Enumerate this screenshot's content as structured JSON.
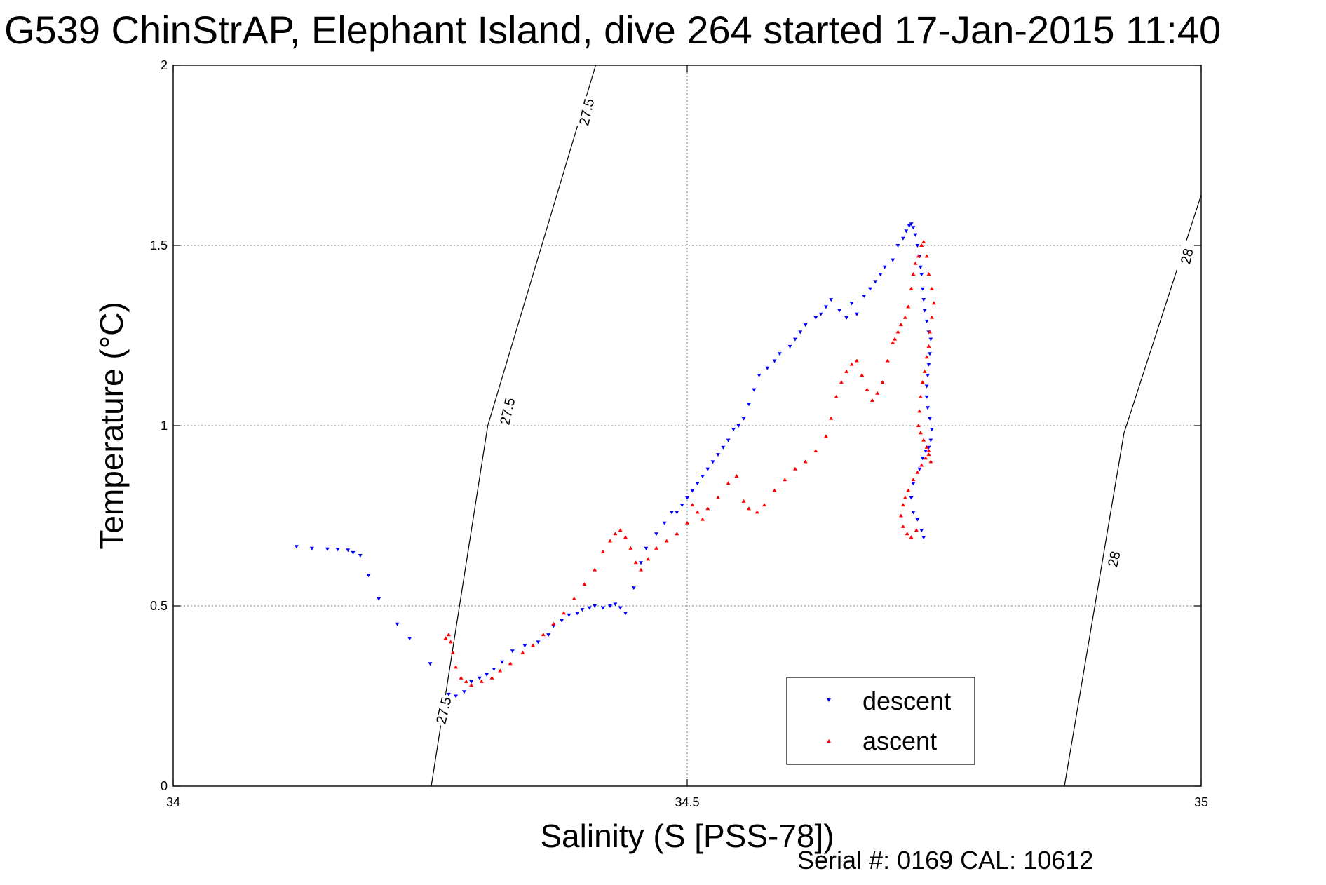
{
  "chart_data": {
    "type": "scatter",
    "title": "G539 ChinStrAP, Elephant Island, dive 264 started 17-Jan-2015 11:40",
    "xlabel": "Salinity (S [PSS-78])",
    "ylabel": "Temperature (°C)",
    "xlim": [
      34,
      35
    ],
    "ylim": [
      0,
      2
    ],
    "xticks": [
      34,
      34.5,
      35
    ],
    "yticks": [
      0,
      0.5,
      1,
      1.5,
      2
    ],
    "xtick_labels": [
      "34",
      "34.5",
      "35"
    ],
    "ytick_labels": [
      "0",
      "0.5",
      "1",
      "1.5",
      "2"
    ],
    "grid": true,
    "legend_position": "bottom-right",
    "footer": "Serial #: 0169 CAL: 10612",
    "isopycnals": [
      {
        "value": 27.5,
        "points": [
          [
            34.251,
            0.0
          ],
          [
            34.306,
            1.0
          ],
          [
            34.411,
            2.0
          ]
        ],
        "labels": [
          {
            "text": "27.5",
            "x": 34.263,
            "y": 0.21
          },
          {
            "text": "27.5",
            "x": 34.325,
            "y": 1.04
          },
          {
            "text": "27.5",
            "x": 34.402,
            "y": 1.87
          }
        ]
      },
      {
        "value": 28,
        "points": [
          [
            34.867,
            0.0
          ],
          [
            34.925,
            0.98
          ],
          [
            35.0,
            1.64
          ]
        ],
        "labels": [
          {
            "text": "28",
            "x": 34.915,
            "y": 0.63
          },
          {
            "text": "28",
            "x": 34.986,
            "y": 1.47
          }
        ]
      }
    ],
    "series": [
      {
        "name": "descent",
        "color": "#0000ff",
        "marker": "triangle-down",
        "x": [
          34.12,
          34.135,
          34.15,
          34.16,
          34.17,
          34.175,
          34.182,
          34.19,
          34.2,
          34.218,
          34.23,
          34.25,
          34.268,
          34.275,
          34.283,
          34.29,
          34.298,
          34.305,
          34.312,
          34.32,
          34.33,
          34.342,
          34.355,
          34.365,
          34.37,
          34.378,
          34.385,
          34.393,
          34.398,
          34.405,
          34.41,
          34.418,
          34.425,
          34.43,
          34.435,
          34.44,
          34.448,
          34.455,
          34.46,
          34.47,
          34.478,
          34.485,
          34.49,
          34.495,
          34.5,
          34.505,
          34.51,
          34.515,
          34.52,
          34.525,
          34.53,
          34.535,
          34.54,
          34.545,
          34.55,
          34.555,
          34.56,
          34.565,
          34.57,
          34.578,
          34.585,
          34.59,
          34.6,
          34.605,
          34.61,
          34.615,
          34.625,
          34.63,
          34.635,
          34.64,
          34.648,
          34.655,
          34.66,
          34.665,
          34.672,
          34.678,
          34.683,
          34.688,
          34.692,
          34.7,
          34.705,
          34.71,
          34.713,
          34.716,
          34.718,
          34.72,
          34.722,
          34.724,
          34.726,
          34.727,
          34.728,
          34.729,
          34.73,
          34.731,
          34.733,
          34.735,
          34.737,
          34.736,
          34.735,
          34.734,
          34.733,
          34.733,
          34.734,
          34.736,
          34.738,
          34.737,
          34.735,
          34.732,
          34.729,
          34.726,
          34.72,
          34.718,
          34.72,
          34.724,
          34.728,
          34.73
        ],
        "y": [
          0.665,
          0.66,
          0.658,
          0.657,
          0.655,
          0.648,
          0.64,
          0.585,
          0.52,
          0.45,
          0.41,
          0.34,
          0.255,
          0.25,
          0.262,
          0.29,
          0.3,
          0.31,
          0.325,
          0.345,
          0.375,
          0.39,
          0.4,
          0.42,
          0.445,
          0.46,
          0.475,
          0.48,
          0.49,
          0.495,
          0.5,
          0.495,
          0.5,
          0.505,
          0.495,
          0.48,
          0.55,
          0.62,
          0.66,
          0.7,
          0.73,
          0.76,
          0.76,
          0.78,
          0.8,
          0.82,
          0.84,
          0.86,
          0.88,
          0.9,
          0.92,
          0.94,
          0.96,
          0.99,
          1.0,
          1.02,
          1.06,
          1.1,
          1.14,
          1.16,
          1.18,
          1.2,
          1.22,
          1.24,
          1.26,
          1.28,
          1.3,
          1.31,
          1.33,
          1.35,
          1.32,
          1.3,
          1.34,
          1.31,
          1.36,
          1.38,
          1.4,
          1.42,
          1.44,
          1.46,
          1.5,
          1.52,
          1.54,
          1.555,
          1.56,
          1.55,
          1.53,
          1.5,
          1.47,
          1.44,
          1.42,
          1.38,
          1.35,
          1.32,
          1.29,
          1.26,
          1.24,
          1.2,
          1.17,
          1.14,
          1.11,
          1.08,
          1.05,
          1.02,
          0.99,
          0.96,
          0.94,
          0.93,
          0.91,
          0.88,
          0.84,
          0.8,
          0.76,
          0.74,
          0.71,
          0.69
        ]
      },
      {
        "name": "ascent",
        "color": "#ff0000",
        "marker": "triangle-up",
        "x": [
          34.265,
          34.268,
          34.27,
          34.272,
          34.275,
          34.28,
          34.285,
          34.29,
          34.3,
          34.31,
          34.318,
          34.328,
          34.34,
          34.35,
          34.36,
          34.37,
          34.38,
          34.39,
          34.4,
          34.41,
          34.418,
          34.425,
          34.43,
          34.435,
          34.44,
          34.445,
          34.45,
          34.455,
          34.462,
          34.47,
          34.48,
          34.49,
          34.5,
          34.505,
          34.51,
          34.515,
          34.52,
          34.53,
          34.54,
          34.548,
          34.555,
          34.56,
          34.568,
          34.575,
          34.585,
          34.595,
          34.605,
          34.615,
          34.625,
          34.635,
          34.64,
          34.645,
          34.65,
          34.655,
          34.66,
          34.665,
          34.67,
          34.675,
          34.68,
          34.685,
          34.69,
          34.695,
          34.7,
          34.702,
          34.705,
          34.708,
          34.712,
          34.715,
          34.718,
          34.72,
          34.722,
          34.725,
          34.728,
          34.73,
          34.733,
          34.735,
          34.738,
          34.74,
          34.738,
          34.736,
          34.735,
          34.733,
          34.731,
          34.729,
          34.727,
          34.726,
          34.725,
          34.727,
          34.73,
          34.733,
          34.735,
          34.737,
          34.735,
          34.732,
          34.728,
          34.724,
          34.72,
          34.715,
          34.712,
          34.71,
          34.708,
          34.71,
          34.714,
          34.718,
          34.723
        ],
        "y": [
          0.41,
          0.42,
          0.4,
          0.37,
          0.33,
          0.3,
          0.29,
          0.28,
          0.29,
          0.3,
          0.32,
          0.34,
          0.37,
          0.39,
          0.42,
          0.45,
          0.48,
          0.52,
          0.56,
          0.6,
          0.65,
          0.68,
          0.7,
          0.71,
          0.69,
          0.66,
          0.62,
          0.6,
          0.63,
          0.66,
          0.68,
          0.7,
          0.73,
          0.78,
          0.76,
          0.74,
          0.77,
          0.8,
          0.84,
          0.86,
          0.79,
          0.77,
          0.76,
          0.78,
          0.82,
          0.85,
          0.88,
          0.9,
          0.93,
          0.97,
          1.02,
          1.08,
          1.12,
          1.15,
          1.17,
          1.18,
          1.14,
          1.1,
          1.07,
          1.09,
          1.12,
          1.18,
          1.23,
          1.24,
          1.26,
          1.28,
          1.3,
          1.33,
          1.38,
          1.42,
          1.45,
          1.47,
          1.5,
          1.51,
          1.47,
          1.42,
          1.38,
          1.34,
          1.3,
          1.26,
          1.22,
          1.19,
          1.15,
          1.12,
          1.08,
          1.04,
          1.0,
          0.98,
          0.96,
          0.94,
          0.92,
          0.9,
          0.93,
          0.91,
          0.89,
          0.87,
          0.85,
          0.82,
          0.8,
          0.78,
          0.75,
          0.72,
          0.7,
          0.69,
          0.71
        ]
      }
    ]
  }
}
